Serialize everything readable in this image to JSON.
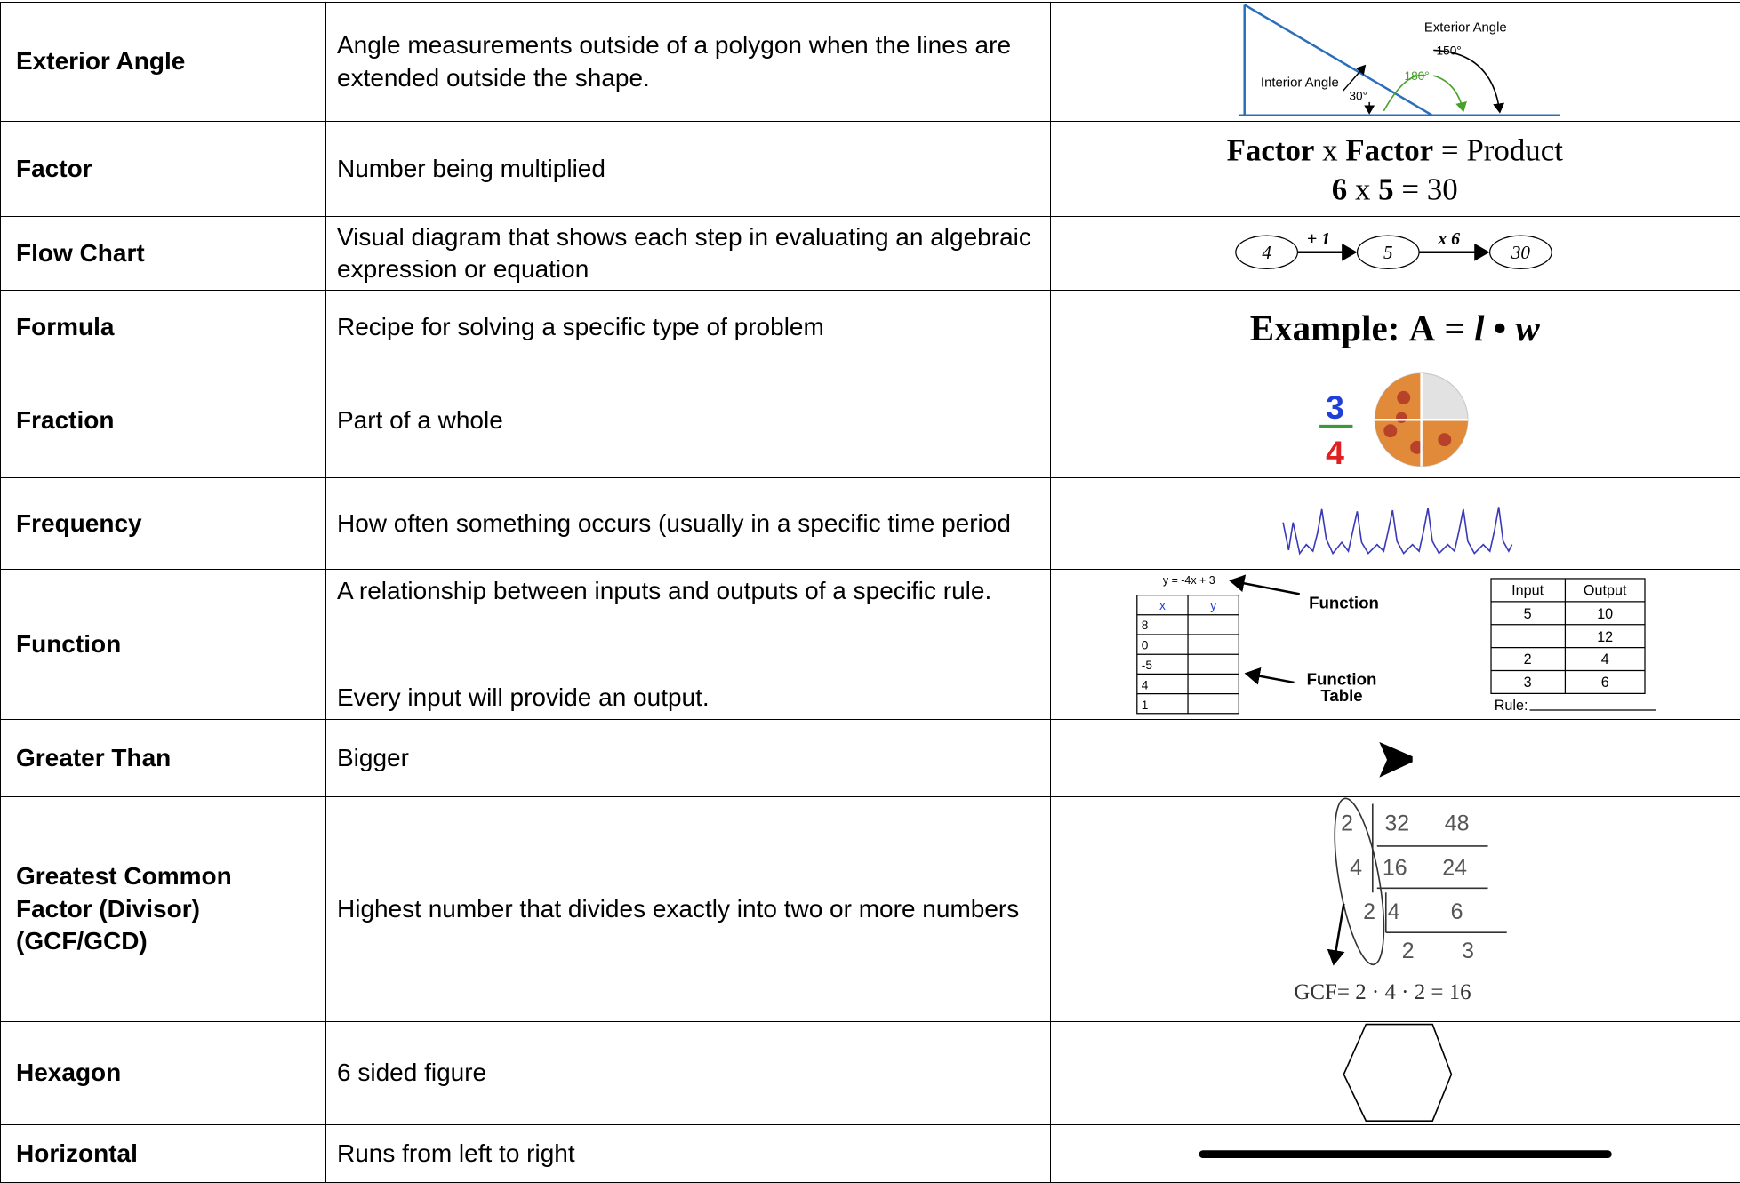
{
  "table": {
    "rows": [
      {
        "term": "Exterior Angle",
        "definition": "Angle measurements outside of a polygon when the lines are extended outside the shape.",
        "example": {
          "exterior_label": "Exterior Angle",
          "exterior_angle": "150°",
          "straight_angle": "180°",
          "interior_label": "Interior Angle",
          "interior_angle": "30°"
        }
      },
      {
        "term": "Factor",
        "definition": "Number being multiplied",
        "example": {
          "line1": [
            "Factor",
            "x",
            "Factor",
            "= Product"
          ],
          "line2": [
            "6",
            "x",
            "5",
            "= 30"
          ]
        }
      },
      {
        "term": "Flow Chart",
        "definition": "Visual diagram that shows each step in evaluating an algebraic expression or equation",
        "example": {
          "nodes": [
            "4",
            "5",
            "30"
          ],
          "steps": [
            "+ 1",
            "x 6"
          ]
        }
      },
      {
        "term": "Formula",
        "definition": "Recipe for solving a specific type of problem",
        "example": {
          "lead": "Example:",
          "parts": [
            "A",
            "=",
            "l",
            "•",
            "w"
          ]
        }
      },
      {
        "term": "Fraction",
        "definition": "Part of a whole",
        "example": {
          "numerator": "3",
          "denominator": "4"
        }
      },
      {
        "term": "Frequency",
        "definition": "How often something occurs (usually in a specific time period"
      },
      {
        "term": "Function",
        "definition": [
          "A relationship between inputs and outputs of a specific rule.",
          "Every input will provide an output."
        ],
        "example": {
          "equation": "y = -4x + 3",
          "headers": [
            "x",
            "y"
          ],
          "x_values": [
            "8",
            "0",
            "-5",
            "4",
            "1"
          ],
          "function_label": "Function",
          "table_label": [
            "Function",
            "Table"
          ],
          "io_headers": [
            "Input",
            "Output"
          ],
          "io_rows": [
            [
              "5",
              "10"
            ],
            [
              null,
              "12"
            ],
            [
              "2",
              "4"
            ],
            [
              "3",
              "6"
            ]
          ],
          "rule_label": "Rule:"
        }
      },
      {
        "term": "Greater Than",
        "definition": "Bigger"
      },
      {
        "term": [
          "Greatest Common",
          "Factor (Divisor)",
          "(GCF/GCD)"
        ],
        "definition": "Highest number that divides exactly into two or more numbers",
        "example": {
          "divisors": [
            "2",
            "4",
            "2"
          ],
          "rows": [
            [
              "32",
              "48"
            ],
            [
              "16",
              "24"
            ],
            [
              "4",
              "6"
            ],
            [
              "2",
              "3"
            ]
          ],
          "caption": "GCF= 2 · 4 · 2 = 16"
        }
      },
      {
        "term": "Hexagon",
        "definition": "6 sided figure"
      },
      {
        "term": "Horizontal",
        "definition": "Runs from left to right"
      }
    ]
  }
}
